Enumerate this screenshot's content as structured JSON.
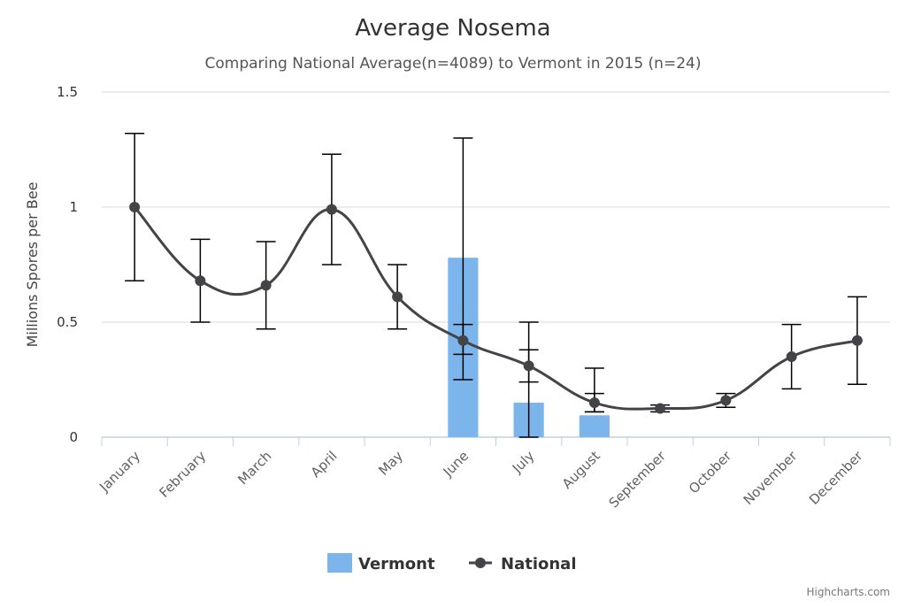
{
  "chart_data": {
    "type": "bar",
    "title": "Average Nosema",
    "subtitle": "Comparing National Average(n=4089) to Vermont in 2015 (n=24)",
    "ylabel": "Millions Spores per Bee",
    "xlabel": "",
    "ylim": [
      0,
      1.5
    ],
    "yticks": [
      0,
      0.5,
      1,
      1.5
    ],
    "ytick_labels": [
      "0",
      "0.5",
      "1",
      "1.5"
    ],
    "categories": [
      "January",
      "February",
      "March",
      "April",
      "May",
      "June",
      "July",
      "August",
      "September",
      "October",
      "November",
      "December"
    ],
    "series": [
      {
        "name": "Vermont",
        "type": "column",
        "color": "#7cb5ec",
        "values": [
          null,
          null,
          null,
          null,
          null,
          0.78,
          0.15,
          0.095,
          null,
          null,
          null,
          null
        ],
        "error_low": [
          null,
          null,
          null,
          null,
          null,
          0.25,
          0.0,
          0.11,
          null,
          null,
          null,
          null
        ],
        "error_high": [
          null,
          null,
          null,
          null,
          null,
          1.3,
          0.5,
          0.3,
          null,
          null,
          null,
          null
        ]
      },
      {
        "name": "National",
        "type": "spline",
        "color": "#434348",
        "values": [
          1.0,
          0.68,
          0.66,
          0.99,
          0.61,
          0.42,
          0.31,
          0.15,
          0.125,
          0.16,
          0.35,
          0.42
        ],
        "error_low": [
          0.68,
          0.5,
          0.47,
          0.75,
          0.47,
          0.36,
          0.24,
          0.11,
          0.11,
          0.13,
          0.21,
          0.23
        ],
        "error_high": [
          1.32,
          0.86,
          0.85,
          1.23,
          0.75,
          0.49,
          0.38,
          0.19,
          0.14,
          0.19,
          0.49,
          0.61
        ]
      }
    ],
    "grid": true,
    "legend_position": "bottom-center",
    "credits": "Highcharts.com"
  }
}
